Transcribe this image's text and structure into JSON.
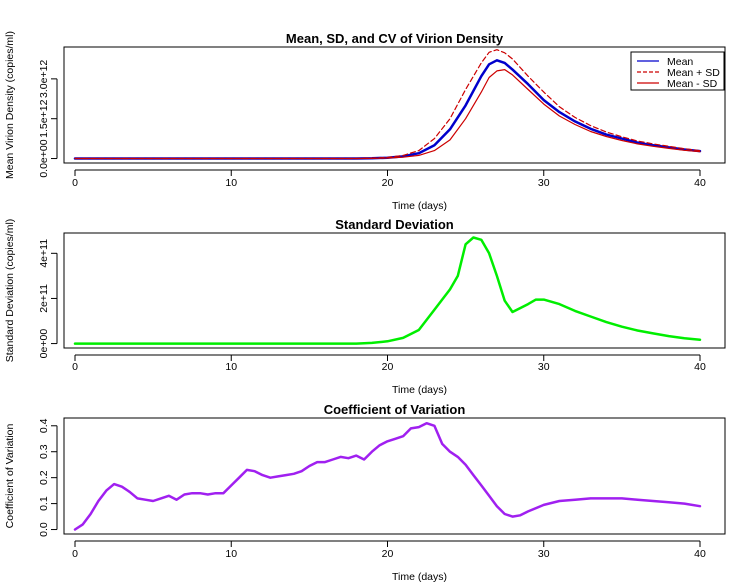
{
  "chart_data": [
    {
      "type": "line",
      "title": "Mean, SD, and CV of Virion Density",
      "xlabel": "Time (days)",
      "ylabel": "Mean Virion Density (copies/ml)",
      "xlim": [
        0,
        40
      ],
      "ylim": [
        0,
        4200000000000.0
      ],
      "xticks": [
        0,
        10,
        20,
        30,
        40
      ],
      "xtick_labels": [
        "0",
        "10",
        "20",
        "30",
        "40"
      ],
      "yticks": [
        0,
        1500000000000.0,
        3000000000000.0
      ],
      "ytick_labels": [
        "0.0e+00",
        "1.5e+12",
        "3.0e+12"
      ],
      "grid": false,
      "legend": {
        "position": "top-right",
        "entries": [
          {
            "label": "Mean",
            "color": "#0000cc",
            "style": "solid"
          },
          {
            "label": "Mean + SD",
            "color": "#cc0000",
            "style": "dashed"
          },
          {
            "label": "Mean - SD",
            "color": "#cc0000",
            "style": "solid"
          }
        ]
      },
      "x": [
        0,
        2,
        4,
        6,
        8,
        10,
        12,
        14,
        16,
        18,
        19,
        20,
        21,
        22,
        23,
        24,
        25,
        26,
        26.5,
        27,
        27.5,
        28,
        29,
        30,
        31,
        32,
        33,
        34,
        35,
        36,
        37,
        38,
        39,
        40
      ],
      "series": [
        {
          "name": "Mean",
          "color": "#0000cc",
          "width": 2.5,
          "dash": "",
          "values": [
            0,
            0,
            0,
            0,
            0,
            0,
            0,
            0,
            0,
            0,
            10000000000.0,
            30000000000.0,
            80000000000.0,
            200000000000.0,
            500000000000.0,
            1100000000000.0,
            2000000000000.0,
            3100000000000.0,
            3550000000000.0,
            3700000000000.0,
            3600000000000.0,
            3350000000000.0,
            2800000000000.0,
            2200000000000.0,
            1750000000000.0,
            1400000000000.0,
            1120000000000.0,
            900000000000.0,
            750000000000.0,
            600000000000.0,
            500000000000.0,
            420000000000.0,
            340000000000.0,
            280000000000.0
          ]
        },
        {
          "name": "Mean + SD",
          "color": "#cc0000",
          "width": 1.2,
          "dash": "5,3",
          "values": [
            0,
            0,
            0,
            0,
            0,
            0,
            0,
            0,
            0,
            0,
            15000000000.0,
            40000000000.0,
            120000000000.0,
            300000000000.0,
            750000000000.0,
            1500000000000.0,
            2600000000000.0,
            3600000000000.0,
            4000000000000.0,
            4100000000000.0,
            3980000000000.0,
            3750000000000.0,
            3100000000000.0,
            2500000000000.0,
            1950000000000.0,
            1550000000000.0,
            1240000000000.0,
            1000000000000.0,
            820000000000.0,
            660000000000.0,
            550000000000.0,
            460000000000.0,
            370000000000.0,
            300000000000.0
          ]
        },
        {
          "name": "Mean - SD",
          "color": "#cc0000",
          "width": 1.2,
          "dash": "",
          "values": [
            0,
            0,
            0,
            0,
            0,
            0,
            0,
            0,
            0,
            0,
            5000000000.0,
            20000000000.0,
            50000000000.0,
            120000000000.0,
            300000000000.0,
            700000000000.0,
            1500000000000.0,
            2500000000000.0,
            3050000000000.0,
            3300000000000.0,
            3350000000000.0,
            3150000000000.0,
            2600000000000.0,
            2050000000000.0,
            1600000000000.0,
            1280000000000.0,
            1020000000000.0,
            830000000000.0,
            680000000000.0,
            550000000000.0,
            460000000000.0,
            380000000000.0,
            310000000000.0,
            260000000000.0
          ]
        }
      ]
    },
    {
      "type": "line",
      "title": "Standard Deviation",
      "xlabel": "Time (days)",
      "ylabel": "Standard Deviation (copies/ml)",
      "xlim": [
        0,
        40
      ],
      "ylim": [
        0,
        490000000000.0
      ],
      "xticks": [
        0,
        10,
        20,
        30,
        40
      ],
      "xtick_labels": [
        "0",
        "10",
        "20",
        "30",
        "40"
      ],
      "yticks": [
        0,
        200000000000.0,
        400000000000.0
      ],
      "ytick_labels": [
        "0e+00",
        "2e+11",
        "4e+11"
      ],
      "grid": false,
      "x": [
        0,
        5,
        10,
        15,
        18,
        19,
        20,
        21,
        22,
        23,
        24,
        24.5,
        25,
        25.5,
        26,
        26.5,
        27,
        27.5,
        28,
        29,
        29.5,
        30,
        31,
        32,
        33,
        34,
        35,
        36,
        37,
        38,
        39,
        40
      ],
      "series": [
        {
          "name": "",
          "color": "#00ee00",
          "width": 2.5,
          "dash": "",
          "values": [
            0,
            0,
            0,
            0,
            0,
            3000000000.0,
            10000000000.0,
            25000000000.0,
            60000000000.0,
            150000000000.0,
            240000000000.0,
            300000000000.0,
            440000000000.0,
            470000000000.0,
            460000000000.0,
            400000000000.0,
            300000000000.0,
            190000000000.0,
            140000000000.0,
            175000000000.0,
            195000000000.0,
            195000000000.0,
            175000000000.0,
            145000000000.0,
            120000000000.0,
            95000000000.0,
            75000000000.0,
            58000000000.0,
            45000000000.0,
            33000000000.0,
            24000000000.0,
            17000000000.0
          ]
        }
      ]
    },
    {
      "type": "line",
      "title": "Coefficient of Variation",
      "xlabel": "Time (days)",
      "ylabel": "Coefficient of Variation",
      "xlim": [
        0,
        40
      ],
      "ylim": [
        0,
        0.43
      ],
      "xticks": [
        0,
        10,
        20,
        30,
        40
      ],
      "xtick_labels": [
        "0",
        "10",
        "20",
        "30",
        "40"
      ],
      "yticks": [
        0,
        0.1,
        0.2,
        0.3,
        0.4
      ],
      "ytick_labels": [
        "0.0",
        "0.1",
        "0.2",
        "0.3",
        "0.4"
      ],
      "grid": false,
      "x": [
        0,
        0.5,
        1,
        1.5,
        2,
        2.5,
        3,
        3.5,
        4,
        4.5,
        5,
        5.5,
        6,
        6.5,
        7,
        7.5,
        8,
        8.5,
        9,
        9.5,
        10,
        10.5,
        11,
        11.5,
        12,
        12.5,
        13,
        13.5,
        14,
        14.5,
        15,
        15.5,
        16,
        16.5,
        17,
        17.5,
        18,
        18.5,
        19,
        19.5,
        20,
        20.5,
        21,
        21.5,
        22,
        22.5,
        23,
        23.5,
        24,
        24.5,
        25,
        25.5,
        26,
        26.5,
        27,
        27.5,
        28,
        28.5,
        29,
        30,
        31,
        32,
        33,
        34,
        35,
        36,
        37,
        38,
        39,
        40
      ],
      "series": [
        {
          "name": "",
          "color": "#a020f0",
          "width": 2.5,
          "dash": "",
          "values": [
            0,
            0.02,
            0.06,
            0.11,
            0.15,
            0.175,
            0.165,
            0.145,
            0.12,
            0.115,
            0.11,
            0.12,
            0.13,
            0.115,
            0.135,
            0.14,
            0.14,
            0.135,
            0.14,
            0.14,
            0.17,
            0.2,
            0.23,
            0.225,
            0.21,
            0.2,
            0.205,
            0.21,
            0.215,
            0.225,
            0.245,
            0.26,
            0.26,
            0.27,
            0.28,
            0.275,
            0.285,
            0.27,
            0.3,
            0.325,
            0.34,
            0.35,
            0.36,
            0.39,
            0.395,
            0.41,
            0.4,
            0.33,
            0.3,
            0.28,
            0.25,
            0.21,
            0.17,
            0.13,
            0.09,
            0.06,
            0.05,
            0.055,
            0.07,
            0.095,
            0.11,
            0.115,
            0.12,
            0.12,
            0.12,
            0.115,
            0.11,
            0.105,
            0.1,
            0.09
          ]
        }
      ]
    }
  ]
}
